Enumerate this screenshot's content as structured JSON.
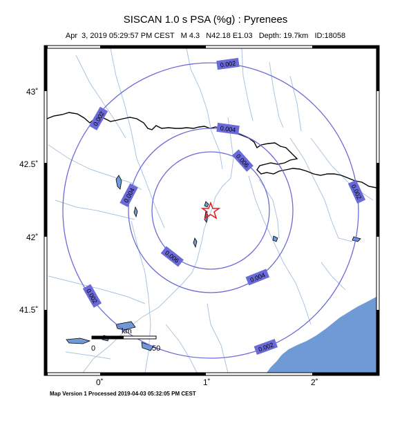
{
  "header": {
    "title": "SISCAN 1.0 s PSA (%g) : Pyrenees",
    "subtitle": "Apr  3, 2019 05:29:57 PM CEST   M 4.3   N42.18 E1.03   Depth: 19.7km   ID:18058"
  },
  "footer": {
    "text": "Map Version 1 Processed 2019-04-03 05:32:05 PM CEST"
  },
  "axes": {
    "lat_ticks": [
      "43˚",
      "42.5˚",
      "42˚",
      "41.5˚"
    ],
    "lon_ticks": [
      "0˚",
      "1˚",
      "2˚"
    ]
  },
  "scale_bar": {
    "unit": "km",
    "start": "0",
    "end": "50"
  },
  "contours": {
    "labels": [
      "0.002",
      "0.002",
      "0.002",
      "0.002",
      "0.002",
      "0.004",
      "0.004",
      "0.004",
      "0.006",
      "0.006"
    ]
  },
  "colors": {
    "contour": "#6a6ad8",
    "label_bg": "#6a6ad8",
    "river": "#a9c4e0",
    "sea": "#6f9ad6",
    "epicenter": "#e02020",
    "border": "#000000"
  },
  "icons": {
    "epicenter": "star-icon"
  }
}
